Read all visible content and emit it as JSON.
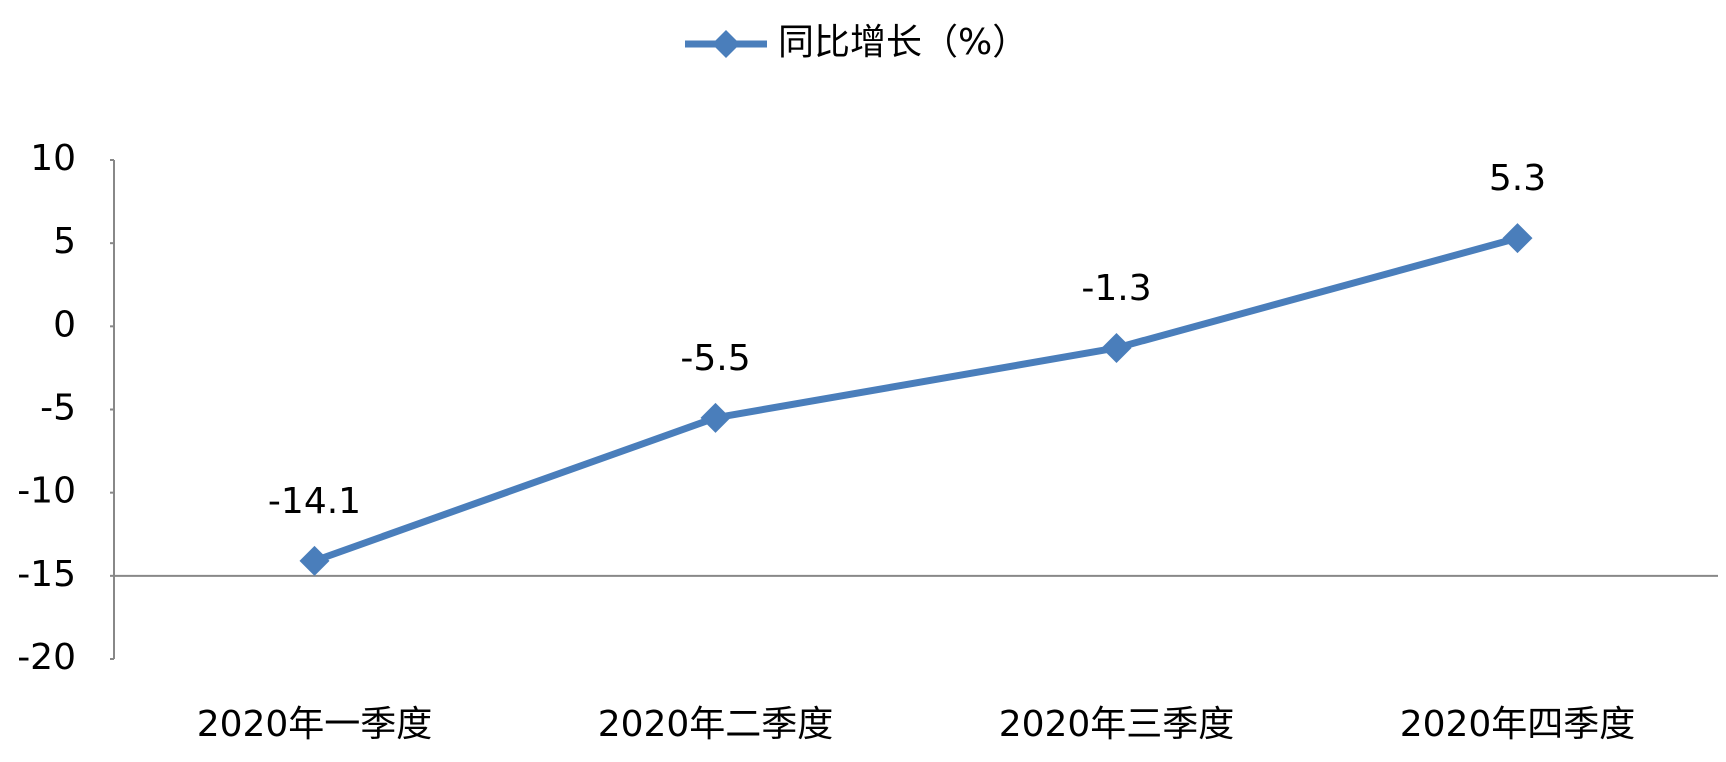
{
  "chart_data": {
    "type": "line",
    "categories": [
      "2020年一季度",
      "2020年二季度",
      "2020年三季度",
      "2020年四季度"
    ],
    "series": [
      {
        "name": "同比增长（%）",
        "color": "#4a7ebb",
        "values": [
          -14.1,
          -5.5,
          -1.3,
          5.3
        ]
      }
    ],
    "ylim": [
      -20,
      10
    ],
    "yticks": [
      -20,
      -15,
      -10,
      -5,
      0,
      5,
      10
    ],
    "xaxis_at": -15,
    "legend": "top",
    "data_labels": true
  }
}
